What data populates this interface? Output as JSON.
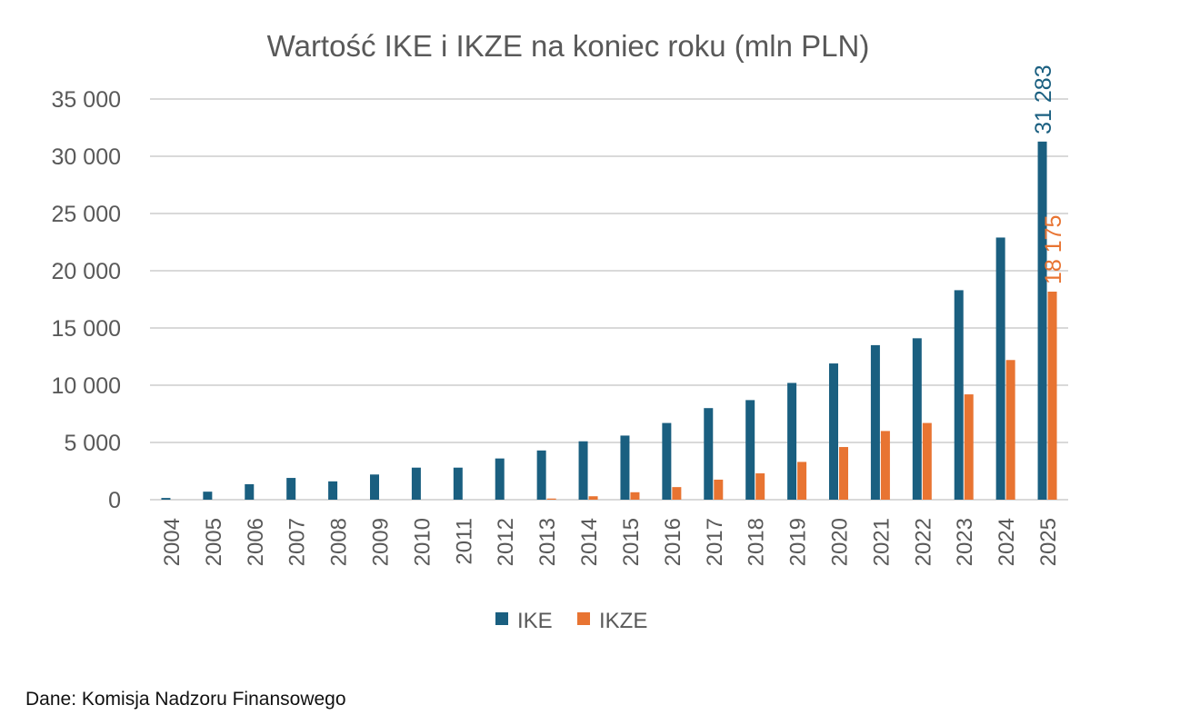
{
  "chart_data": {
    "type": "bar",
    "title": "Wartość IKE i IKZE na koniec roku (mln PLN)",
    "xlabel": "",
    "ylabel": "",
    "ylim": [
      0,
      35000
    ],
    "yticks": [
      0,
      5000,
      10000,
      15000,
      20000,
      25000,
      30000,
      35000
    ],
    "ytick_labels": [
      "0",
      "5 000",
      "10 000",
      "15 000",
      "20 000",
      "25 000",
      "30 000",
      "35 000"
    ],
    "grid": true,
    "legend_position": "bottom",
    "categories": [
      "2004",
      "2005",
      "2006",
      "2007",
      "2008",
      "2009",
      "2010",
      "2011",
      "2012",
      "2013",
      "2014",
      "2015",
      "2016",
      "2017",
      "2018",
      "2019",
      "2020",
      "2021",
      "2022",
      "2023",
      "2024",
      "2025"
    ],
    "series": [
      {
        "name": "IKE",
        "color": "#1a5f80",
        "values": [
          150,
          700,
          1350,
          1900,
          1600,
          2200,
          2800,
          2800,
          3600,
          4300,
          5100,
          5600,
          6700,
          8000,
          8700,
          10200,
          11900,
          13500,
          14100,
          18300,
          22900,
          31283
        ]
      },
      {
        "name": "IKZE",
        "color": "#e87432",
        "values": [
          0,
          0,
          0,
          0,
          0,
          0,
          0,
          0,
          0,
          100,
          300,
          650,
          1100,
          1750,
          2300,
          3300,
          4600,
          6000,
          6700,
          9200,
          12200,
          18175
        ]
      }
    ],
    "annotations": [
      {
        "series": "IKE",
        "category": "2025",
        "text": "31 283"
      },
      {
        "series": "IKZE",
        "category": "2025",
        "text": "18 175"
      }
    ]
  },
  "source": "Dane: Komisja Nadzoru Finansowego"
}
